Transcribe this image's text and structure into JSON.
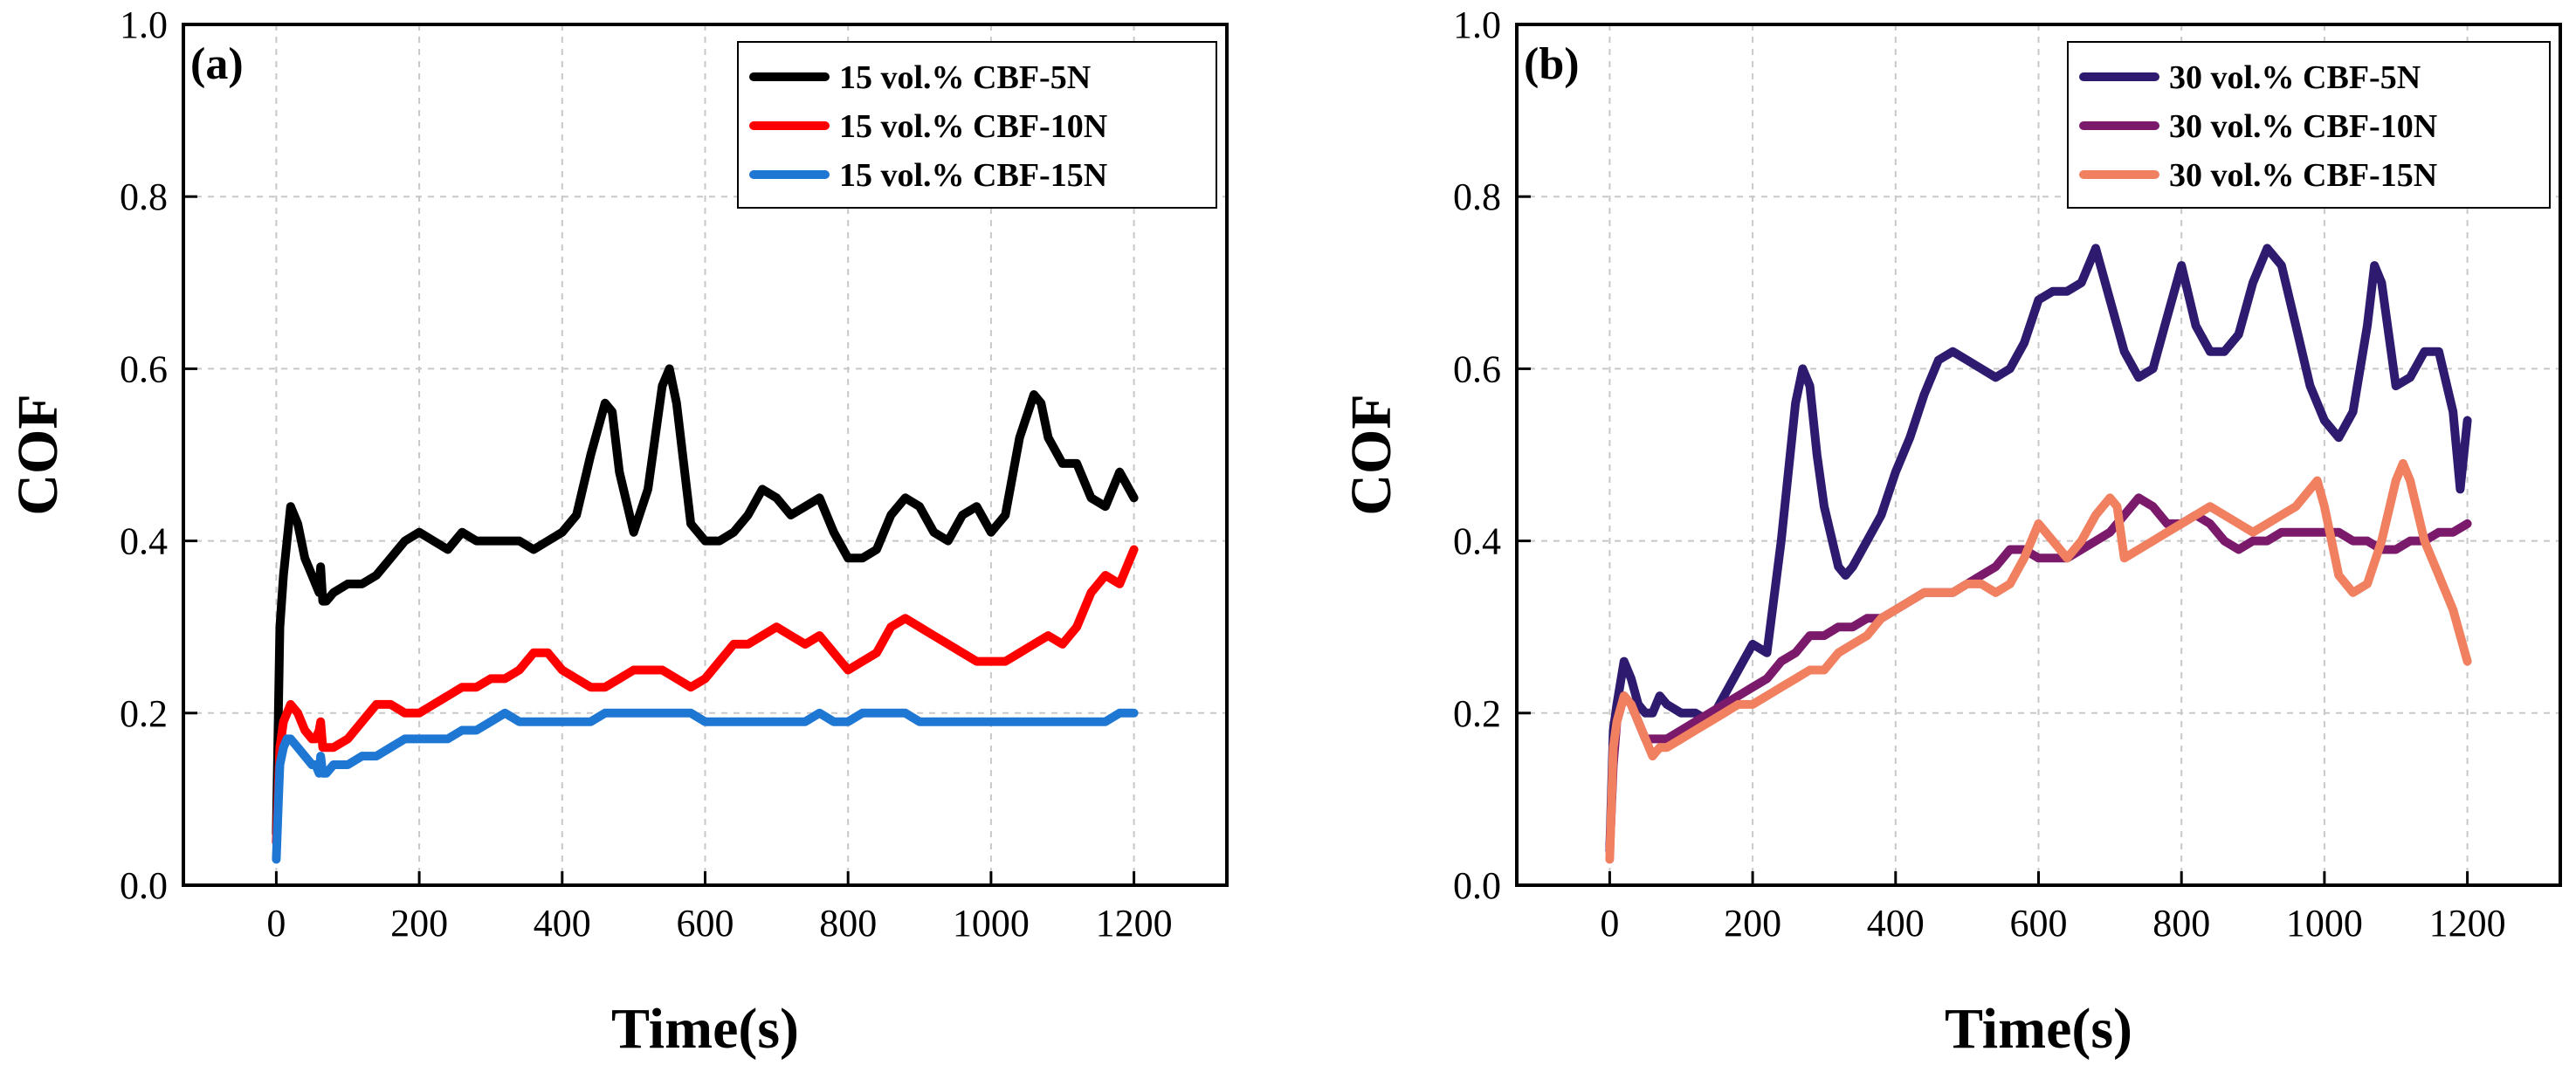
{
  "chart_data": [
    {
      "type": "line",
      "panel_label": "(a)",
      "xlabel": "Time(s)",
      "ylabel": "COF",
      "xlim": [
        -130,
        1330
      ],
      "ylim": [
        0.0,
        1.0
      ],
      "xticks": [
        0,
        200,
        400,
        600,
        800,
        1000,
        1200
      ],
      "yticks": [
        0.0,
        0.2,
        0.4,
        0.6,
        0.8,
        1.0
      ],
      "ytick_labels": [
        "0.0",
        "0.2",
        "0.4",
        "0.6",
        "0.8",
        "1.0"
      ],
      "legend_position": "top-right",
      "grid": true,
      "series": [
        {
          "name": "15 vol.% CBF-5N",
          "color": "#000000",
          "x": [
            0,
            5,
            10,
            20,
            30,
            40,
            50,
            55,
            60,
            62,
            65,
            70,
            80,
            100,
            120,
            140,
            160,
            180,
            200,
            220,
            240,
            260,
            280,
            300,
            320,
            340,
            360,
            380,
            400,
            420,
            440,
            460,
            470,
            480,
            500,
            520,
            540,
            550,
            560,
            580,
            600,
            620,
            640,
            660,
            680,
            700,
            720,
            740,
            760,
            780,
            800,
            820,
            840,
            860,
            880,
            900,
            920,
            940,
            960,
            980,
            1000,
            1020,
            1040,
            1060,
            1070,
            1080,
            1100,
            1120,
            1140,
            1160,
            1180,
            1200
          ],
          "y": [
            0.06,
            0.3,
            0.36,
            0.44,
            0.42,
            0.38,
            0.36,
            0.35,
            0.34,
            0.37,
            0.33,
            0.33,
            0.34,
            0.35,
            0.35,
            0.36,
            0.38,
            0.4,
            0.41,
            0.4,
            0.39,
            0.41,
            0.4,
            0.4,
            0.4,
            0.4,
            0.39,
            0.4,
            0.41,
            0.43,
            0.5,
            0.56,
            0.55,
            0.48,
            0.41,
            0.46,
            0.58,
            0.6,
            0.56,
            0.42,
            0.4,
            0.4,
            0.41,
            0.43,
            0.46,
            0.45,
            0.43,
            0.44,
            0.45,
            0.41,
            0.38,
            0.38,
            0.39,
            0.43,
            0.45,
            0.44,
            0.41,
            0.4,
            0.43,
            0.44,
            0.41,
            0.43,
            0.52,
            0.57,
            0.56,
            0.52,
            0.49,
            0.49,
            0.45,
            0.44,
            0.48,
            0.45
          ]
        },
        {
          "name": "15 vol.% CBF-10N",
          "color": "#ff0000",
          "x": [
            0,
            5,
            10,
            20,
            30,
            40,
            50,
            55,
            60,
            62,
            65,
            70,
            80,
            100,
            120,
            140,
            160,
            180,
            200,
            220,
            240,
            260,
            280,
            300,
            320,
            340,
            360,
            380,
            400,
            420,
            440,
            460,
            480,
            500,
            520,
            540,
            560,
            580,
            600,
            620,
            640,
            660,
            680,
            700,
            720,
            740,
            760,
            780,
            800,
            820,
            840,
            860,
            880,
            900,
            920,
            940,
            960,
            980,
            1000,
            1020,
            1040,
            1060,
            1080,
            1100,
            1120,
            1140,
            1160,
            1180,
            1200
          ],
          "y": [
            0.05,
            0.16,
            0.19,
            0.21,
            0.2,
            0.18,
            0.17,
            0.17,
            0.18,
            0.19,
            0.16,
            0.16,
            0.16,
            0.17,
            0.19,
            0.21,
            0.21,
            0.2,
            0.2,
            0.21,
            0.22,
            0.23,
            0.23,
            0.24,
            0.24,
            0.25,
            0.27,
            0.27,
            0.25,
            0.24,
            0.23,
            0.23,
            0.24,
            0.25,
            0.25,
            0.25,
            0.24,
            0.23,
            0.24,
            0.26,
            0.28,
            0.28,
            0.29,
            0.3,
            0.29,
            0.28,
            0.29,
            0.27,
            0.25,
            0.26,
            0.27,
            0.3,
            0.31,
            0.3,
            0.29,
            0.28,
            0.27,
            0.26,
            0.26,
            0.26,
            0.27,
            0.28,
            0.29,
            0.28,
            0.3,
            0.34,
            0.36,
            0.35,
            0.39
          ]
        },
        {
          "name": "15 vol.% CBF-15N",
          "color": "#1f77d4",
          "x": [
            0,
            3,
            5,
            10,
            15,
            20,
            30,
            40,
            50,
            55,
            60,
            62,
            65,
            70,
            80,
            100,
            120,
            140,
            160,
            180,
            200,
            220,
            240,
            260,
            280,
            300,
            320,
            340,
            360,
            380,
            400,
            420,
            440,
            460,
            480,
            500,
            520,
            540,
            560,
            580,
            600,
            620,
            640,
            660,
            680,
            700,
            720,
            740,
            760,
            780,
            800,
            820,
            840,
            860,
            880,
            900,
            920,
            940,
            960,
            980,
            1000,
            1020,
            1040,
            1060,
            1080,
            1100,
            1120,
            1140,
            1160,
            1180,
            1200
          ],
          "y": [
            0.03,
            0.1,
            0.14,
            0.16,
            0.17,
            0.17,
            0.16,
            0.15,
            0.14,
            0.14,
            0.13,
            0.15,
            0.13,
            0.13,
            0.14,
            0.14,
            0.15,
            0.15,
            0.16,
            0.17,
            0.17,
            0.17,
            0.17,
            0.18,
            0.18,
            0.19,
            0.2,
            0.19,
            0.19,
            0.19,
            0.19,
            0.19,
            0.19,
            0.2,
            0.2,
            0.2,
            0.2,
            0.2,
            0.2,
            0.2,
            0.19,
            0.19,
            0.19,
            0.19,
            0.19,
            0.19,
            0.19,
            0.19,
            0.2,
            0.19,
            0.19,
            0.2,
            0.2,
            0.2,
            0.2,
            0.19,
            0.19,
            0.19,
            0.19,
            0.19,
            0.19,
            0.19,
            0.19,
            0.19,
            0.19,
            0.19,
            0.19,
            0.19,
            0.19,
            0.2,
            0.2
          ]
        }
      ]
    },
    {
      "type": "line",
      "panel_label": "(b)",
      "xlabel": "Time(s)",
      "ylabel": "COF",
      "xlim": [
        -130,
        1330
      ],
      "ylim": [
        0.0,
        1.0
      ],
      "xticks": [
        0,
        200,
        400,
        600,
        800,
        1000,
        1200
      ],
      "yticks": [
        0.0,
        0.2,
        0.4,
        0.6,
        0.8,
        1.0
      ],
      "ytick_labels": [
        "0.0",
        "0.2",
        "0.4",
        "0.6",
        "0.8",
        "1.0"
      ],
      "legend_position": "top-right",
      "grid": true,
      "series": [
        {
          "name": "30 vol.% CBF-5N",
          "color": "#2e1a6e",
          "x": [
            0,
            5,
            10,
            20,
            30,
            40,
            50,
            60,
            70,
            80,
            100,
            120,
            140,
            160,
            180,
            200,
            220,
            240,
            260,
            270,
            280,
            290,
            300,
            320,
            330,
            340,
            360,
            380,
            400,
            420,
            440,
            460,
            480,
            500,
            520,
            540,
            560,
            580,
            600,
            620,
            640,
            660,
            680,
            700,
            720,
            740,
            760,
            780,
            800,
            820,
            840,
            860,
            880,
            900,
            920,
            940,
            960,
            980,
            1000,
            1020,
            1040,
            1060,
            1070,
            1080,
            1100,
            1120,
            1140,
            1160,
            1180,
            1190,
            1200
          ],
          "y": [
            0.04,
            0.18,
            0.21,
            0.26,
            0.24,
            0.21,
            0.2,
            0.2,
            0.22,
            0.21,
            0.2,
            0.2,
            0.19,
            0.22,
            0.25,
            0.28,
            0.27,
            0.4,
            0.56,
            0.6,
            0.58,
            0.5,
            0.44,
            0.37,
            0.36,
            0.37,
            0.4,
            0.43,
            0.48,
            0.52,
            0.57,
            0.61,
            0.62,
            0.61,
            0.6,
            0.59,
            0.6,
            0.63,
            0.68,
            0.69,
            0.69,
            0.7,
            0.74,
            0.68,
            0.62,
            0.59,
            0.6,
            0.66,
            0.72,
            0.65,
            0.62,
            0.62,
            0.64,
            0.7,
            0.74,
            0.72,
            0.65,
            0.58,
            0.54,
            0.52,
            0.55,
            0.65,
            0.72,
            0.7,
            0.58,
            0.59,
            0.62,
            0.62,
            0.55,
            0.46,
            0.54
          ]
        },
        {
          "name": "30 vol.% CBF-10N",
          "color": "#7b1a6b",
          "x": [
            0,
            5,
            10,
            20,
            30,
            40,
            50,
            60,
            70,
            80,
            100,
            120,
            140,
            160,
            180,
            200,
            220,
            240,
            260,
            280,
            300,
            320,
            340,
            360,
            380,
            400,
            420,
            440,
            460,
            480,
            500,
            520,
            540,
            560,
            580,
            600,
            620,
            640,
            660,
            680,
            700,
            720,
            740,
            760,
            780,
            800,
            820,
            840,
            860,
            880,
            900,
            920,
            940,
            960,
            980,
            1000,
            1020,
            1040,
            1060,
            1080,
            1100,
            1120,
            1140,
            1160,
            1180,
            1200
          ],
          "y": [
            0.04,
            0.14,
            0.19,
            0.22,
            0.21,
            0.19,
            0.17,
            0.17,
            0.17,
            0.17,
            0.18,
            0.19,
            0.2,
            0.21,
            0.22,
            0.23,
            0.24,
            0.26,
            0.27,
            0.29,
            0.29,
            0.3,
            0.3,
            0.31,
            0.31,
            0.32,
            0.33,
            0.34,
            0.34,
            0.34,
            0.35,
            0.36,
            0.37,
            0.39,
            0.39,
            0.38,
            0.38,
            0.38,
            0.39,
            0.4,
            0.41,
            0.43,
            0.45,
            0.44,
            0.42,
            0.42,
            0.43,
            0.42,
            0.4,
            0.39,
            0.4,
            0.4,
            0.41,
            0.41,
            0.41,
            0.41,
            0.41,
            0.4,
            0.4,
            0.39,
            0.39,
            0.4,
            0.4,
            0.41,
            0.41,
            0.42
          ]
        },
        {
          "name": "30 vol.% CBF-15N",
          "color": "#f08060",
          "x": [
            0,
            5,
            10,
            20,
            30,
            40,
            50,
            60,
            70,
            80,
            100,
            120,
            140,
            160,
            180,
            200,
            220,
            240,
            260,
            280,
            300,
            320,
            340,
            360,
            380,
            400,
            420,
            440,
            460,
            480,
            500,
            520,
            540,
            560,
            580,
            600,
            610,
            620,
            640,
            660,
            680,
            700,
            710,
            720,
            740,
            760,
            780,
            800,
            820,
            840,
            860,
            880,
            900,
            920,
            940,
            960,
            980,
            990,
            1000,
            1020,
            1040,
            1060,
            1080,
            1100,
            1110,
            1120,
            1140,
            1160,
            1180,
            1200
          ],
          "y": [
            0.03,
            0.16,
            0.19,
            0.22,
            0.21,
            0.19,
            0.17,
            0.15,
            0.16,
            0.16,
            0.17,
            0.18,
            0.19,
            0.2,
            0.21,
            0.21,
            0.22,
            0.23,
            0.24,
            0.25,
            0.25,
            0.27,
            0.28,
            0.29,
            0.31,
            0.32,
            0.33,
            0.34,
            0.34,
            0.34,
            0.35,
            0.35,
            0.34,
            0.35,
            0.38,
            0.42,
            0.41,
            0.4,
            0.38,
            0.4,
            0.43,
            0.45,
            0.44,
            0.38,
            0.39,
            0.4,
            0.41,
            0.42,
            0.43,
            0.44,
            0.43,
            0.42,
            0.41,
            0.42,
            0.43,
            0.44,
            0.46,
            0.47,
            0.44,
            0.36,
            0.34,
            0.35,
            0.4,
            0.47,
            0.49,
            0.47,
            0.4,
            0.36,
            0.32,
            0.26
          ]
        }
      ]
    }
  ]
}
